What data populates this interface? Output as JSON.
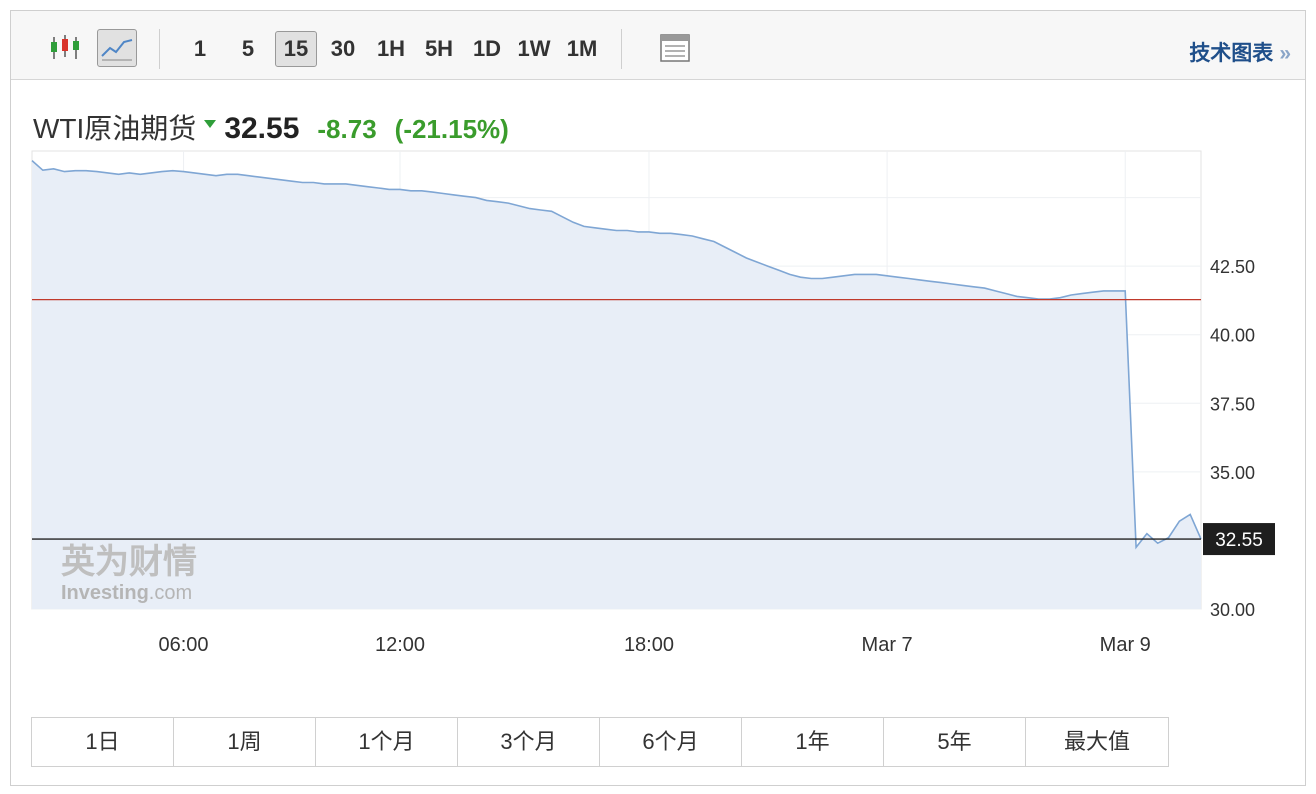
{
  "toolbar": {
    "intervals": [
      "1",
      "5",
      "15",
      "30",
      "1H",
      "5H",
      "1D",
      "1W",
      "1M"
    ],
    "selected_interval": "15",
    "tech_chart_label": "技术图表",
    "tech_chart_chevron": "»"
  },
  "instrument": {
    "name": "WTI原油期货",
    "price": "32.55",
    "change": "-8.73",
    "change_pct": "(-21.15%)"
  },
  "watermark": {
    "cn": "英为财情",
    "en": "Investing",
    "suffix": ".com"
  },
  "chart_data": {
    "type": "area",
    "title": "",
    "xlabel": "",
    "ylabel": "",
    "ylim": [
      30.0,
      46.7
    ],
    "yticks": [
      "30.00",
      "35.00",
      "37.50",
      "40.00",
      "42.50"
    ],
    "xticks": [
      "06:00",
      "12:00",
      "18:00",
      "Mar 7",
      "Mar 9"
    ],
    "reference_lines": [
      {
        "name": "previous-close",
        "value": 41.28,
        "color": "#c0392b"
      },
      {
        "name": "last-price",
        "value": 32.55,
        "color": "#222222",
        "label": "32.55"
      }
    ],
    "x": [
      0,
      1,
      2,
      3,
      4,
      5,
      6,
      7,
      8,
      9,
      10,
      11,
      12,
      13,
      14,
      15,
      16,
      17,
      18,
      19,
      20,
      21,
      22,
      23,
      24,
      25,
      26,
      27,
      28,
      29,
      30,
      31,
      32,
      33,
      34,
      35,
      36,
      37,
      38,
      39,
      40,
      41,
      42,
      43,
      44,
      45,
      46,
      47,
      48,
      49,
      50,
      51,
      52,
      53,
      54,
      55,
      56,
      57,
      58,
      59,
      60,
      61,
      62,
      63,
      64,
      65,
      66,
      67,
      68,
      69,
      70,
      71,
      72,
      73,
      74,
      75,
      76,
      77,
      78,
      79,
      80,
      81,
      82,
      83,
      84,
      85,
      86,
      87,
      88,
      89,
      90,
      91,
      92,
      93,
      94,
      95,
      96,
      97,
      98,
      99,
      100,
      101,
      102,
      103,
      104,
      105,
      106,
      107,
      108
    ],
    "values": [
      46.35,
      46.0,
      46.05,
      45.95,
      45.98,
      45.98,
      45.95,
      45.9,
      45.85,
      45.9,
      45.85,
      45.9,
      45.95,
      45.98,
      45.95,
      45.9,
      45.85,
      45.8,
      45.85,
      45.85,
      45.8,
      45.75,
      45.7,
      45.65,
      45.6,
      45.55,
      45.55,
      45.5,
      45.5,
      45.5,
      45.45,
      45.4,
      45.35,
      45.3,
      45.3,
      45.25,
      45.25,
      45.2,
      45.15,
      45.1,
      45.05,
      45.0,
      44.9,
      44.85,
      44.8,
      44.7,
      44.6,
      44.55,
      44.5,
      44.3,
      44.1,
      43.95,
      43.9,
      43.85,
      43.8,
      43.8,
      43.75,
      43.75,
      43.7,
      43.7,
      43.65,
      43.6,
      43.5,
      43.4,
      43.2,
      43.0,
      42.8,
      42.65,
      42.5,
      42.35,
      42.2,
      42.1,
      42.05,
      42.05,
      42.1,
      42.15,
      42.2,
      42.2,
      42.2,
      42.15,
      42.1,
      42.05,
      42.0,
      41.95,
      41.9,
      41.85,
      41.8,
      41.75,
      41.7,
      41.6,
      41.5,
      41.4,
      41.35,
      41.3,
      41.3,
      41.35,
      41.45,
      41.5,
      41.55,
      41.6,
      41.6,
      41.6,
      32.25,
      32.75,
      32.4,
      32.6,
      33.2,
      33.45,
      32.55
    ]
  }
}
